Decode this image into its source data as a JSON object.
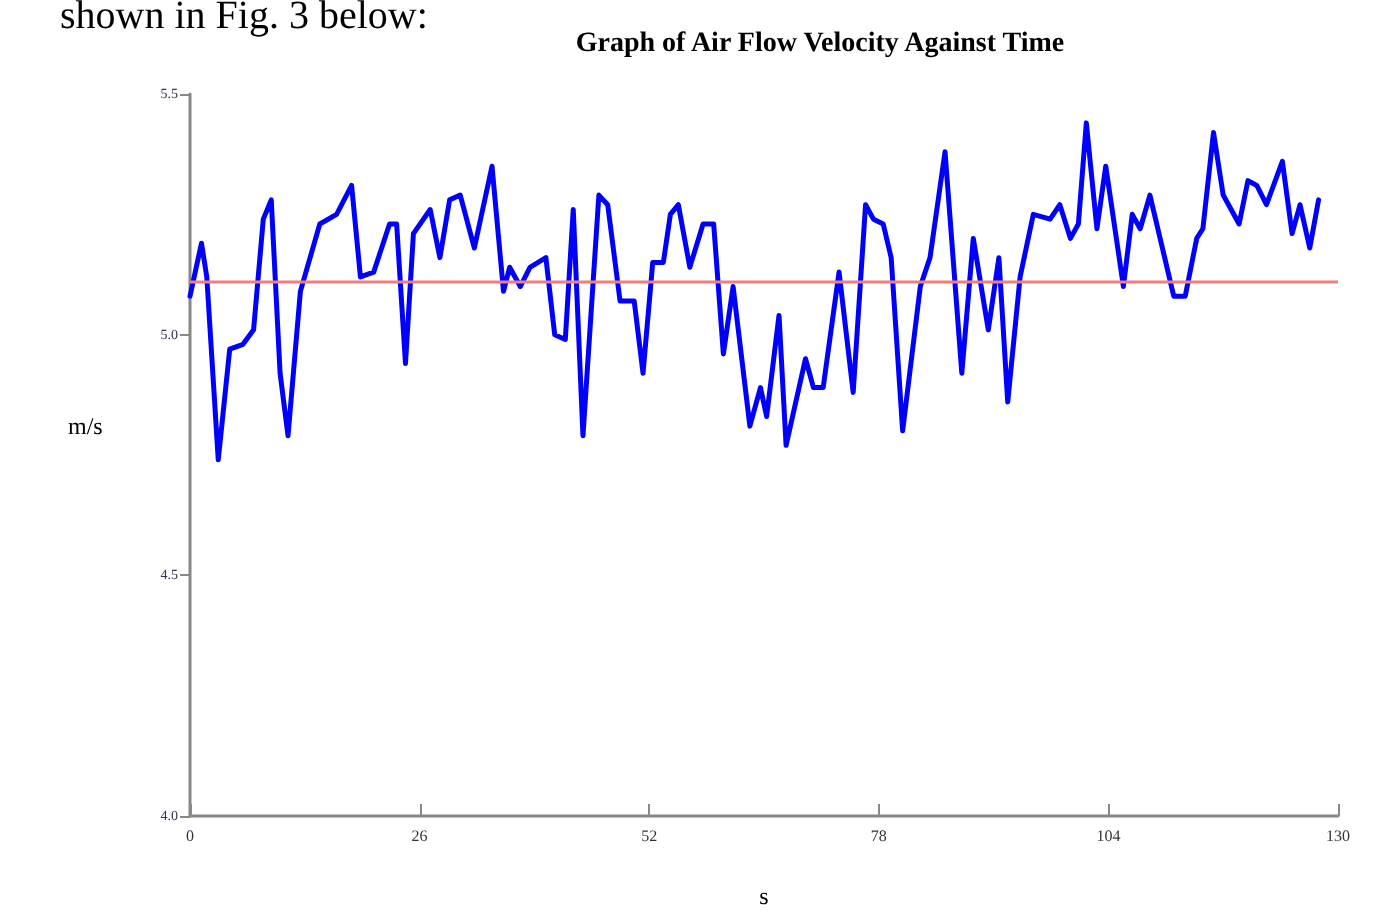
{
  "chart_data": {
    "type": "line",
    "title": "Graph of Air Flow Velocity Against Time",
    "xlabel": "s",
    "ylabel": "m/s",
    "annotations": [
      "shown in Fig. 3 below:"
    ],
    "xlim": [
      0,
      130
    ],
    "xticks": [
      0,
      26,
      52,
      78,
      104,
      130
    ],
    "ylim": [
      4.0,
      5.5
    ],
    "yticks": [
      {
        "value": 4.0,
        "label": "4.0"
      },
      {
        "value": 4.5,
        "label": "4.5"
      },
      {
        "value": 5.0,
        "label": "5.0"
      },
      {
        "value": 5.5,
        "label": "5.5"
      }
    ],
    "grid": false,
    "marker": "none",
    "line_style": "solid",
    "ref_lines": [
      {
        "axis": "y",
        "value": 5.11,
        "color": "#f08080"
      }
    ],
    "series": [
      {
        "color": "#0000ff",
        "x": [
          0,
          1.3,
          1.9,
          3.2,
          4.5,
          6.0,
          7.2,
          8.3,
          9.2,
          10.2,
          11.1,
          12.5,
          14.7,
          16.6,
          18.3,
          19.3,
          20.8,
          22.6,
          23.4,
          24.4,
          25.3,
          27.2,
          28.3,
          29.4,
          30.6,
          32.2,
          34.2,
          35.5,
          36.2,
          37.4,
          38.5,
          40.3,
          41.3,
          42.5,
          43.4,
          44.5,
          46.3,
          47.3,
          48.7,
          50.3,
          51.3,
          52.4,
          53.6,
          54.4,
          55.3,
          56.6,
          58.1,
          59.3,
          60.4,
          61.5,
          63.4,
          64.6,
          65.3,
          66.7,
          67.5,
          69.7,
          70.6,
          71.7,
          73.5,
          75.1,
          76.5,
          77.4,
          78.5,
          79.4,
          80.7,
          82.7,
          83.8,
          85.5,
          87.4,
          88.7,
          90.4,
          91.6,
          92.6,
          94.0,
          95.5,
          97.4,
          98.5,
          99.7,
          100.6,
          101.5,
          102.7,
          103.7,
          105.7,
          106.7,
          107.6,
          108.7,
          111.4,
          112.7,
          114.0,
          114.7,
          115.9,
          117.0,
          118.8,
          119.8,
          120.8,
          121.9,
          123.7,
          124.8,
          125.7,
          126.8,
          127.8
        ],
        "values": [
          5.08,
          5.19,
          5.12,
          4.74,
          4.97,
          4.98,
          5.01,
          5.24,
          5.28,
          4.92,
          4.79,
          5.09,
          5.23,
          5.25,
          5.31,
          5.12,
          5.13,
          5.23,
          5.23,
          4.94,
          5.21,
          5.26,
          5.16,
          5.28,
          5.29,
          5.18,
          5.35,
          5.09,
          5.14,
          5.1,
          5.14,
          5.16,
          5.0,
          4.99,
          5.26,
          4.79,
          5.29,
          5.27,
          5.07,
          5.07,
          4.92,
          5.15,
          5.15,
          5.25,
          5.27,
          5.14,
          5.23,
          5.23,
          4.96,
          5.1,
          4.81,
          4.89,
          4.83,
          5.04,
          4.77,
          4.95,
          4.89,
          4.89,
          5.13,
          4.88,
          5.27,
          5.24,
          5.23,
          5.16,
          4.8,
          5.1,
          5.16,
          5.38,
          4.92,
          5.2,
          5.01,
          5.16,
          4.86,
          5.12,
          5.25,
          5.24,
          5.27,
          5.2,
          5.23,
          5.44,
          5.22,
          5.35,
          5.1,
          5.25,
          5.22,
          5.29,
          5.08,
          5.08,
          5.2,
          5.22,
          5.42,
          5.29,
          5.23,
          5.32,
          5.31,
          5.27,
          5.36,
          5.21,
          5.27,
          5.18,
          5.28
        ]
      }
    ]
  }
}
